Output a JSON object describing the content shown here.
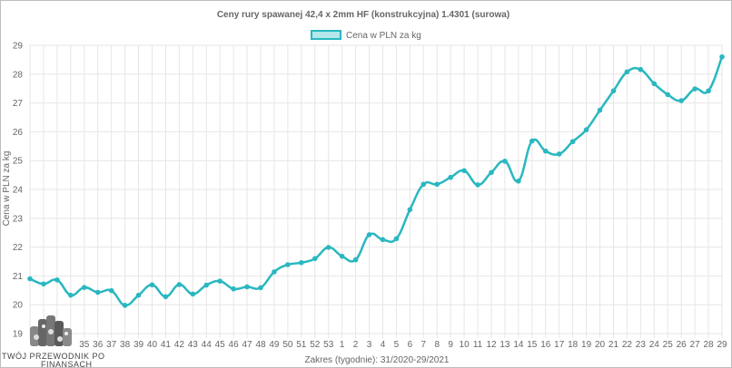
{
  "chart_data": {
    "type": "line",
    "title": "Ceny rury spawanej  42,4 x 2mm HF (konstrukcyjna) 1.4301 (surowa)",
    "xlabel": "Zakres (tygodnie): 31/2020-29/2021",
    "ylabel": "Cena w PLN za kg",
    "ylim": [
      19,
      29
    ],
    "yticks": [
      19,
      20,
      21,
      22,
      23,
      24,
      25,
      26,
      27,
      28,
      29
    ],
    "grid": true,
    "legend_position": "top-center",
    "series_color": "#2ab7c0",
    "series_fill": "#b3e7ea",
    "categories": [
      "31",
      "32",
      "33",
      "34",
      "35",
      "36",
      "37",
      "38",
      "39",
      "40",
      "41",
      "42",
      "43",
      "44",
      "45",
      "46",
      "47",
      "48",
      "49",
      "50",
      "51",
      "52",
      "53",
      "1",
      "2",
      "3",
      "4",
      "5",
      "6",
      "7",
      "8",
      "9",
      "10",
      "11",
      "12",
      "13",
      "14",
      "15",
      "16",
      "17",
      "18",
      "19",
      "20",
      "21",
      "22",
      "23",
      "24",
      "25",
      "26",
      "27",
      "28",
      "29"
    ],
    "x_tick_labels": [
      "35",
      "36",
      "37",
      "38",
      "39",
      "40",
      "41",
      "42",
      "43",
      "44",
      "45",
      "46",
      "47",
      "48",
      "49",
      "50",
      "51",
      "52",
      "53",
      "1",
      "2",
      "3",
      "4",
      "5",
      "6",
      "7",
      "8",
      "9",
      "10",
      "11",
      "12",
      "13",
      "14",
      "15",
      "16",
      "17",
      "18",
      "19",
      "20",
      "21",
      "22",
      "23",
      "24",
      "25",
      "26",
      "27",
      "28",
      "29"
    ],
    "series": [
      {
        "name": "Cena w PLN za kg",
        "values": [
          20.9,
          20.72,
          20.86,
          20.33,
          20.6,
          20.43,
          20.49,
          19.98,
          20.33,
          20.69,
          20.28,
          20.7,
          20.37,
          20.68,
          20.82,
          20.55,
          20.62,
          20.59,
          21.14,
          21.39,
          21.46,
          21.6,
          21.99,
          21.68,
          21.56,
          22.43,
          22.26,
          22.29,
          23.3,
          24.18,
          24.18,
          24.42,
          24.65,
          24.16,
          24.59,
          24.98,
          24.29,
          25.68,
          25.33,
          25.23,
          25.66,
          26.07,
          26.75,
          27.42,
          28.08,
          28.16,
          27.67,
          27.29,
          27.08,
          27.49,
          27.42,
          28.6
        ]
      }
    ]
  },
  "logo": {
    "text_line1": "TWÓJ PRZEWODNIK PO",
    "text_line2": "FINANSACH"
  }
}
